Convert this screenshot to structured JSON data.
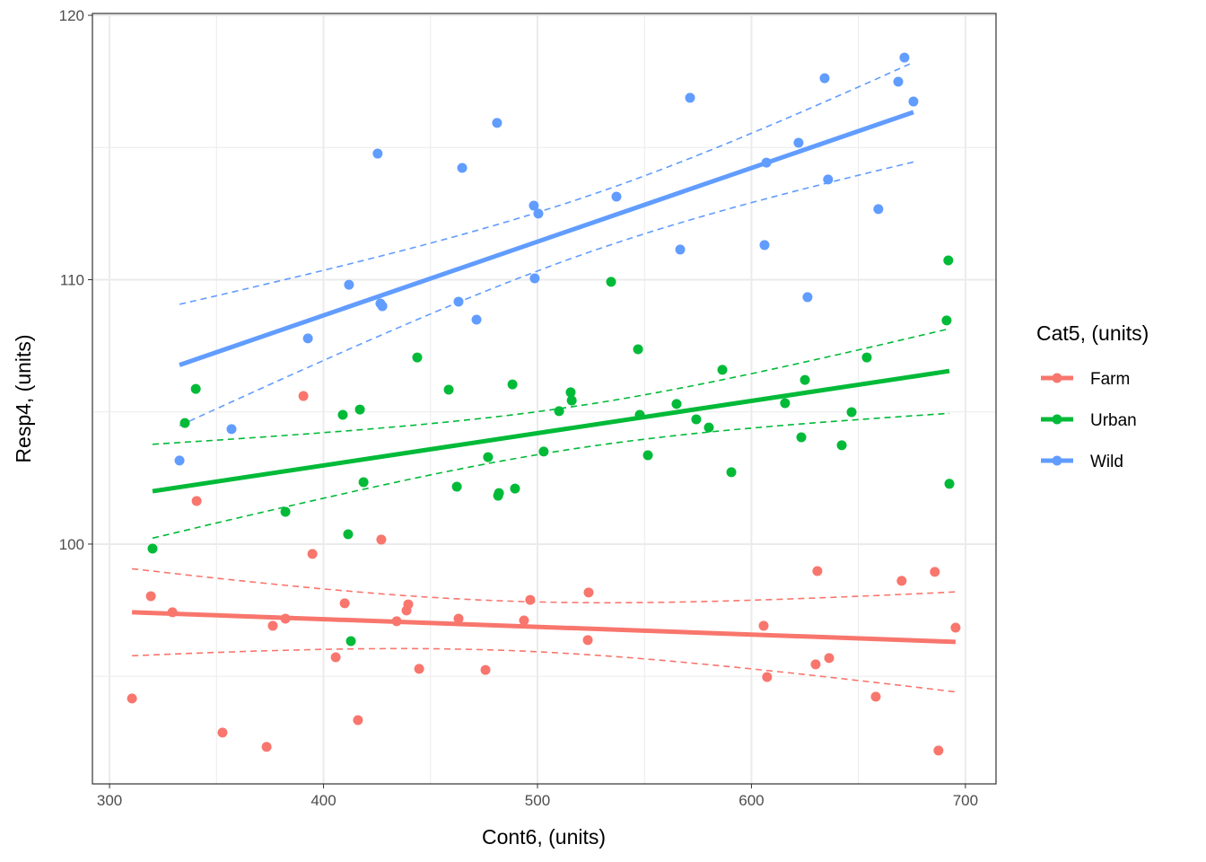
{
  "chart_data": {
    "type": "scatter",
    "xlabel": "Cont6, (units)",
    "ylabel": "Resp4, (units)",
    "xlim": [
      292,
      714.3
    ],
    "ylim": [
      90.93,
      120.07
    ],
    "xticks": [
      300,
      400,
      500,
      600,
      700
    ],
    "yticks": [
      100,
      110,
      120
    ],
    "grid": true,
    "legend": {
      "title": "Cat5, (units)",
      "position": "right"
    },
    "smooth": "linear fit with dashed confidence bounds per series",
    "series": [
      {
        "name": "Farm",
        "color": "#F8766D",
        "points": [
          [
            310.5,
            94.16
          ],
          [
            319.3,
            98.03
          ],
          [
            329.4,
            97.42
          ],
          [
            340.7,
            101.63
          ],
          [
            352.8,
            92.87
          ],
          [
            376.3,
            96.91
          ],
          [
            382.2,
            97.18
          ],
          [
            373.4,
            92.33
          ],
          [
            390.6,
            105.6
          ],
          [
            394.8,
            99.63
          ],
          [
            405.7,
            95.72
          ],
          [
            409.9,
            97.76
          ],
          [
            416.1,
            93.34
          ],
          [
            427.0,
            100.17
          ],
          [
            434.2,
            97.08
          ],
          [
            438.8,
            97.49
          ],
          [
            439.6,
            97.72
          ],
          [
            444.7,
            95.28
          ],
          [
            463.1,
            97.18
          ],
          [
            475.7,
            95.24
          ],
          [
            493.7,
            97.11
          ],
          [
            496.6,
            97.89
          ],
          [
            523.5,
            96.37
          ],
          [
            523.9,
            98.17
          ],
          [
            605.7,
            96.91
          ],
          [
            607.3,
            94.97
          ],
          [
            630.0,
            95.45
          ],
          [
            630.8,
            98.98
          ],
          [
            636.3,
            95.69
          ],
          [
            658.1,
            94.23
          ],
          [
            670.2,
            98.61
          ],
          [
            685.7,
            98.95
          ],
          [
            687.4,
            92.19
          ],
          [
            695.4,
            96.84
          ]
        ]
      },
      {
        "name": "Urban",
        "color": "#00BA38",
        "points": [
          [
            320.1,
            99.83
          ],
          [
            335.2,
            104.58
          ],
          [
            340.3,
            105.87
          ],
          [
            382.2,
            101.22
          ],
          [
            411.5,
            100.37
          ],
          [
            412.8,
            96.33
          ],
          [
            409.0,
            104.89
          ],
          [
            417.0,
            105.09
          ],
          [
            418.7,
            102.34
          ],
          [
            443.8,
            107.06
          ],
          [
            458.5,
            105.84
          ],
          [
            462.3,
            102.17
          ],
          [
            476.9,
            103.29
          ],
          [
            482.0,
            101.93
          ],
          [
            481.6,
            101.83
          ],
          [
            488.3,
            106.04
          ],
          [
            489.5,
            102.1
          ],
          [
            502.9,
            103.5
          ],
          [
            510.1,
            105.03
          ],
          [
            515.5,
            105.74
          ],
          [
            516.0,
            105.43
          ],
          [
            534.4,
            109.92
          ],
          [
            547.0,
            107.37
          ],
          [
            547.8,
            104.89
          ],
          [
            551.6,
            103.36
          ],
          [
            565.0,
            105.3
          ],
          [
            574.2,
            104.72
          ],
          [
            580.1,
            104.41
          ],
          [
            586.4,
            106.59
          ],
          [
            590.6,
            102.72
          ],
          [
            615.7,
            105.33
          ],
          [
            623.3,
            104.04
          ],
          [
            625.0,
            106.21
          ],
          [
            642.2,
            103.74
          ],
          [
            646.8,
            104.99
          ],
          [
            653.9,
            107.06
          ],
          [
            692.0,
            110.73
          ],
          [
            691.2,
            108.46
          ],
          [
            692.5,
            102.28
          ]
        ]
      },
      {
        "name": "Wild",
        "color": "#619CFF",
        "points": [
          [
            332.7,
            103.16
          ],
          [
            357.0,
            104.35
          ],
          [
            392.7,
            107.78
          ],
          [
            411.9,
            109.81
          ],
          [
            425.3,
            114.77
          ],
          [
            426.6,
            109.1
          ],
          [
            427.5,
            109.0
          ],
          [
            463.1,
            109.17
          ],
          [
            464.8,
            114.23
          ],
          [
            471.5,
            108.49
          ],
          [
            481.1,
            115.93
          ],
          [
            498.3,
            112.8
          ],
          [
            500.4,
            112.5
          ],
          [
            498.7,
            110.05
          ],
          [
            536.9,
            113.14
          ],
          [
            566.7,
            111.14
          ],
          [
            571.3,
            116.88
          ],
          [
            606.1,
            111.31
          ],
          [
            607.0,
            114.43
          ],
          [
            622.0,
            115.18
          ],
          [
            626.2,
            109.34
          ],
          [
            634.2,
            117.62
          ],
          [
            635.8,
            113.79
          ],
          [
            659.3,
            112.67
          ],
          [
            668.6,
            117.49
          ],
          [
            671.5,
            118.4
          ],
          [
            675.7,
            116.74
          ]
        ]
      }
    ]
  }
}
